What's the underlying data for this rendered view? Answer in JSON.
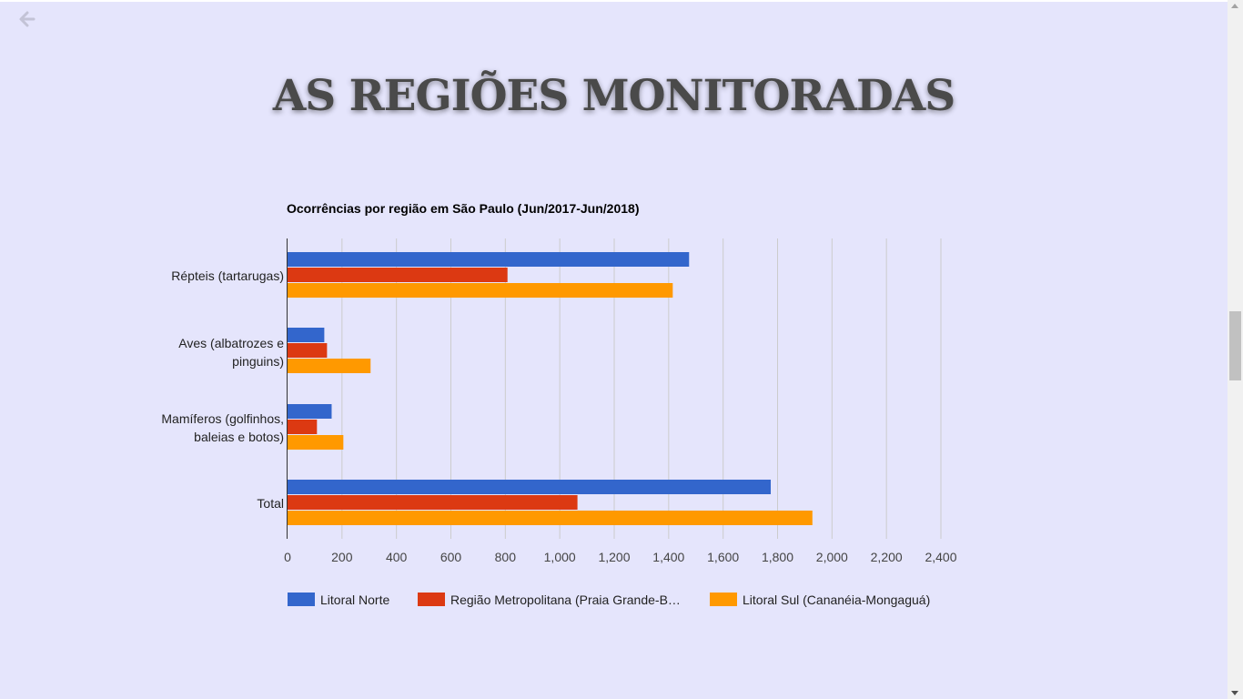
{
  "page": {
    "title": "AS REGIÕES MONITORADAS",
    "back_icon": "arrow-left-icon"
  },
  "colors": {
    "background": "#e5e5fc",
    "series": [
      "#3366cc",
      "#dc3912",
      "#ff9900"
    ]
  },
  "chart_data": {
    "type": "bar",
    "orientation": "horizontal",
    "title": "Ocorrências por região em São Paulo (Jun/2017-Jun/2018)",
    "categories": [
      [
        "Répteis (tartarugas)"
      ],
      [
        "Aves (albatrozes e",
        "pinguins)"
      ],
      [
        "Mamíferos (golfinhos,",
        "baleias e botos)"
      ],
      [
        "Total"
      ]
    ],
    "series": [
      {
        "name": "Litoral Norte",
        "values": [
          1475,
          135,
          162,
          1775
        ]
      },
      {
        "name": "Região Metropolitana (Praia Grande-B…",
        "values": [
          808,
          145,
          108,
          1065
        ]
      },
      {
        "name": "Litoral Sul (Cananéia-Mongaguá)",
        "values": [
          1415,
          305,
          205,
          1928
        ]
      }
    ],
    "xlim": [
      0,
      2400
    ],
    "xticks": [
      "0",
      "200",
      "400",
      "600",
      "800",
      "1,000",
      "1,200",
      "1,400",
      "1,600",
      "1,800",
      "2,000",
      "2,200",
      "2,400"
    ],
    "grid": true,
    "legend_position": "bottom"
  }
}
